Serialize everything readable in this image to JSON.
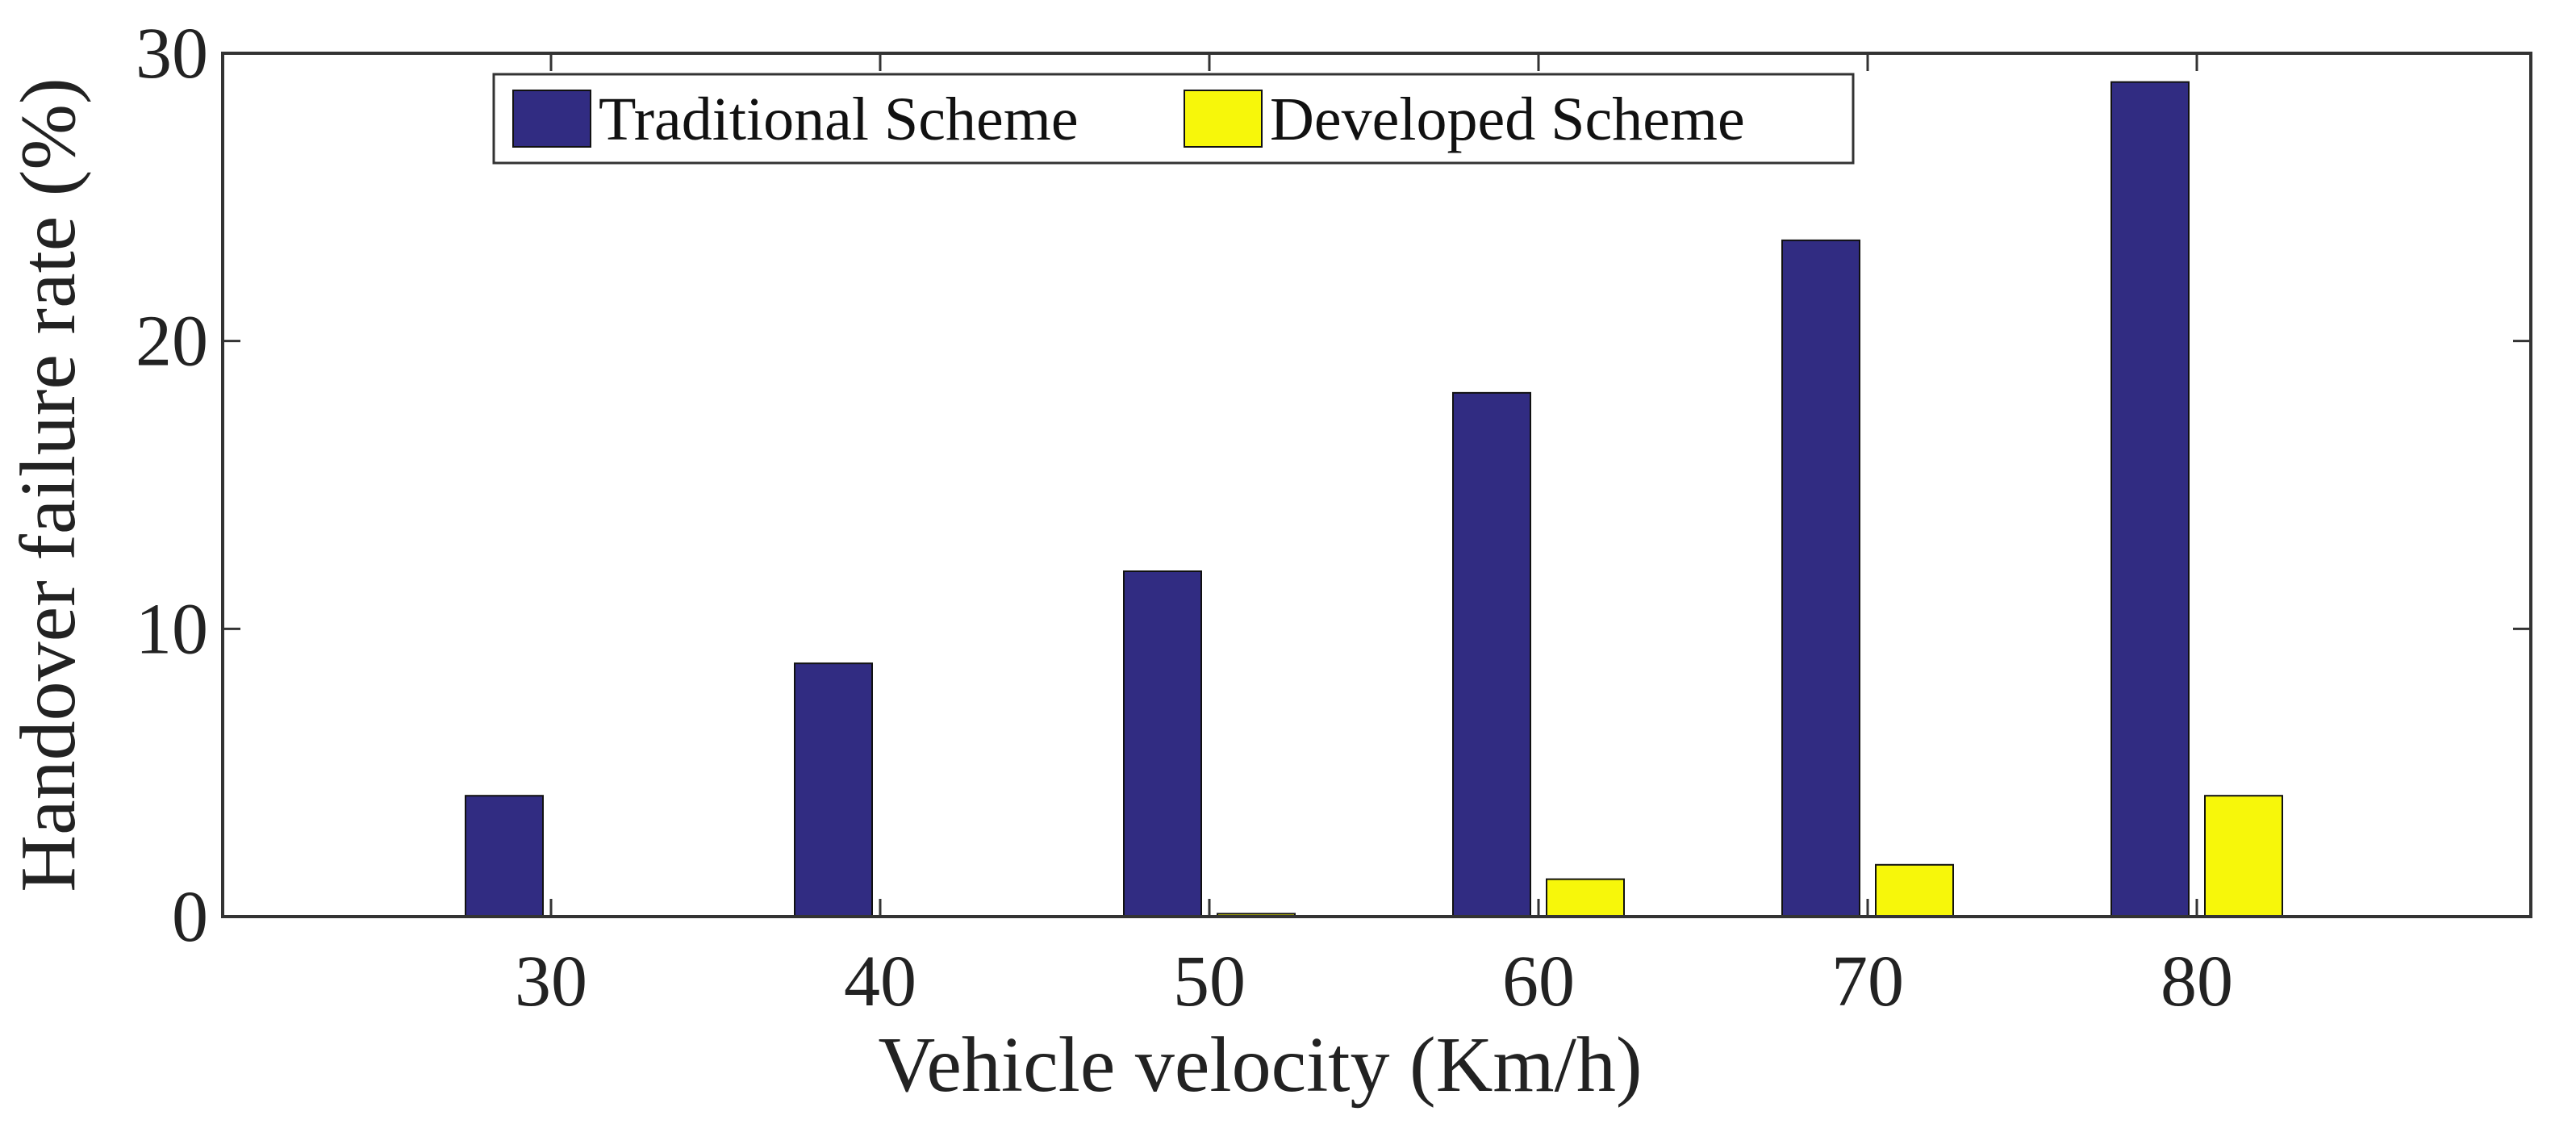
{
  "chart_data": {
    "type": "bar",
    "title": "",
    "xlabel": "Vehicle velocity (Km/h)",
    "ylabel": "Handover failure rate (%)",
    "categories": [
      "30",
      "40",
      "50",
      "60",
      "70",
      "80"
    ],
    "series": [
      {
        "name": "Traditional Scheme",
        "color": "#312c82",
        "values": [
          4.2,
          8.8,
          12.0,
          18.2,
          23.5,
          29.0
        ]
      },
      {
        "name": "Developed Scheme",
        "color": "#f7f70a",
        "values": [
          0.0,
          0.0,
          0.1,
          1.3,
          1.8,
          4.2
        ]
      }
    ],
    "ylim": [
      0,
      30
    ],
    "yticks": [
      "0",
      "10",
      "20",
      "30"
    ],
    "grid": false,
    "legend_position": "top",
    "legend_orientation": "horizontal"
  }
}
